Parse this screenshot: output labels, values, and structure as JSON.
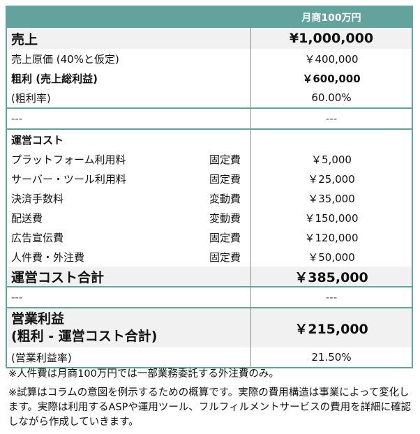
{
  "header": {
    "label": "",
    "column": "月商100万円"
  },
  "rows": {
    "sales": {
      "label": "売上",
      "value": "¥1,000,000"
    },
    "cogs": {
      "label": "売上原価 (40%と仮定)",
      "value": "￥400,000"
    },
    "gross": {
      "label": "粗利 (売上総利益)",
      "value": "￥600,000"
    },
    "gross_rate": {
      "label": "(粗利率)",
      "value": "60.00%"
    },
    "sep1": {
      "label": "---",
      "value": "---"
    },
    "opcost_heading": {
      "label": "運営コスト"
    },
    "items": [
      {
        "label": "プラットフォーム利用料",
        "type": "固定費",
        "value": "￥5,000"
      },
      {
        "label": "サーバー・ツール利用料",
        "type": "固定費",
        "value": "￥25,000"
      },
      {
        "label": "決済手数料",
        "type": "変動費",
        "value": "￥35,000"
      },
      {
        "label": "配送費",
        "type": "変動費",
        "value": "￥150,000"
      },
      {
        "label": "広告宣伝費",
        "type": "固定費",
        "value": "￥120,000"
      },
      {
        "label": "人件費・外注費",
        "type": "固定費",
        "value": "￥50,000"
      }
    ],
    "opcost_total": {
      "label": "運営コスト合計",
      "value": "￥385,000"
    },
    "sep2": {
      "label": "---",
      "value": "---"
    },
    "op_profit": {
      "label": "営業利益",
      "label2": "(粗利 - 運営コスト合計)",
      "value": "￥215,000"
    },
    "op_rate": {
      "label": "(営業利益率)",
      "value": "21.50%"
    }
  },
  "notes": [
    "※人件費は月商100万円では一部業務委託する外注費のみ。",
    "※試算はコラムの意図を例示するための概算です。実際の費用構造は事業によって変化します。実際は利用するASPや運用ツール、フルフィルメントサービスの費用を詳細に確認しながら作成していきます。"
  ]
}
